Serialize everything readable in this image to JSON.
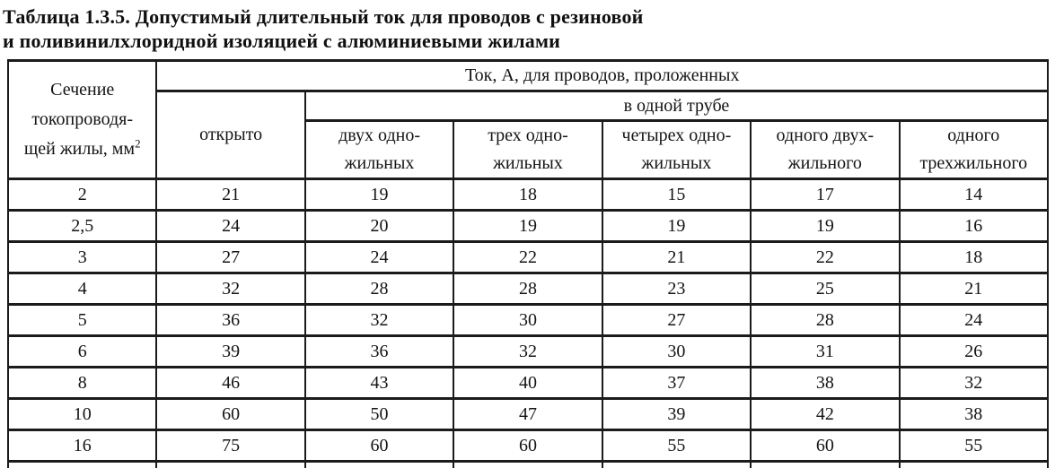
{
  "title": {
    "line1": "Таблица 1.3.5. Допустимый длительный ток для проводов с резиновой",
    "line2": "и поливинилхлоридной изоляцией с алюминиевыми жилами"
  },
  "table": {
    "col1_header": {
      "line1": "Сечение",
      "line2": "токопроводя-",
      "line3": "щей жилы, мм",
      "superscript": "2"
    },
    "top_header": "Ток, А, для проводов, проложенных",
    "open_header": "открыто",
    "pipe_header": "в одной трубе",
    "sub_headers": [
      {
        "line1": "двух одно-",
        "line2": "жильных"
      },
      {
        "line1": "трех одно-",
        "line2": "жильных"
      },
      {
        "line1": "четырех одно-",
        "line2": "жильных"
      },
      {
        "line1": "одного двух-",
        "line2": "жильного"
      },
      {
        "line1": "одного",
        "line2": "трехжильного"
      }
    ],
    "rows": [
      {
        "section": "2",
        "values": [
          "21",
          "19",
          "18",
          "15",
          "17",
          "14"
        ]
      },
      {
        "section": "2,5",
        "values": [
          "24",
          "20",
          "19",
          "19",
          "19",
          "16"
        ]
      },
      {
        "section": "3",
        "values": [
          "27",
          "24",
          "22",
          "21",
          "22",
          "18"
        ]
      },
      {
        "section": "4",
        "values": [
          "32",
          "28",
          "28",
          "23",
          "25",
          "21"
        ]
      },
      {
        "section": "5",
        "values": [
          "36",
          "32",
          "30",
          "27",
          "28",
          "24"
        ]
      },
      {
        "section": "6",
        "values": [
          "39",
          "36",
          "32",
          "30",
          "31",
          "26"
        ]
      },
      {
        "section": "8",
        "values": [
          "46",
          "43",
          "40",
          "37",
          "38",
          "32"
        ]
      },
      {
        "section": "10",
        "values": [
          "60",
          "50",
          "47",
          "39",
          "42",
          "38"
        ]
      },
      {
        "section": "16",
        "values": [
          "75",
          "60",
          "60",
          "55",
          "60",
          "55"
        ]
      }
    ],
    "text_color": "#141414",
    "border_color": "#1b1b1b",
    "background_color": "#ffffff"
  }
}
